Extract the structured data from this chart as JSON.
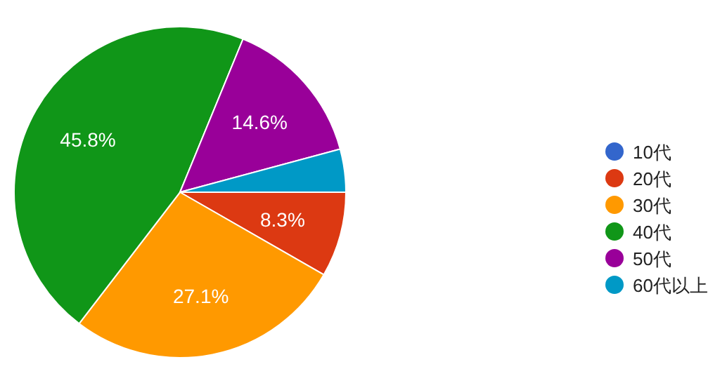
{
  "chart_data": {
    "type": "pie",
    "categories": [
      "10代",
      "20代",
      "30代",
      "40代",
      "50代",
      "60代以上"
    ],
    "values": [
      0,
      8.3,
      27.1,
      45.8,
      14.6,
      4.2
    ],
    "colors": [
      "#3366cc",
      "#dc3912",
      "#ff9900",
      "#109618",
      "#990099",
      "#0099c6"
    ],
    "value_labels": [
      null,
      "8.3%",
      "27.1%",
      "45.8%",
      "14.6%",
      null
    ],
    "legend": "right"
  }
}
